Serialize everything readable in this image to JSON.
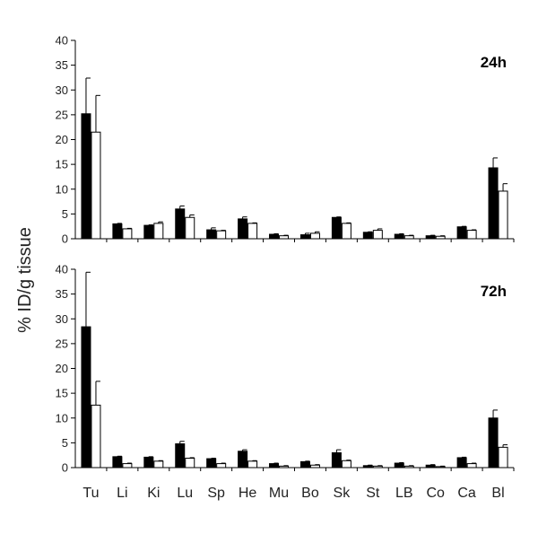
{
  "figure": {
    "ylabel": "% ID/g tissue"
  },
  "chart_data": [
    {
      "type": "bar",
      "annotation": "24h",
      "categories": [
        "Tu",
        "Li",
        "Ki",
        "Lu",
        "Sp",
        "He",
        "Mu",
        "Bo",
        "Sk",
        "St",
        "LB",
        "Co",
        "Ca",
        "Bl"
      ],
      "ylim": [
        0,
        40
      ],
      "yticks": [
        0,
        5,
        10,
        15,
        20,
        25,
        30,
        35,
        40
      ],
      "grid": false,
      "show_xticklabels": false,
      "series": [
        {
          "fill": "#000000",
          "values": [
            25.2,
            3.0,
            2.7,
            6.0,
            1.8,
            4.0,
            0.9,
            0.8,
            4.3,
            1.3,
            0.9,
            0.6,
            2.4,
            14.3
          ],
          "errors": [
            7.2,
            0.1,
            0.1,
            0.6,
            0.4,
            0.4,
            0.1,
            0.3,
            0.1,
            0.1,
            0.1,
            0.1,
            0.1,
            2.0
          ]
        },
        {
          "fill": "#ffffff",
          "values": [
            21.5,
            2.0,
            3.1,
            4.3,
            1.6,
            3.1,
            0.6,
            1.1,
            3.1,
            1.7,
            0.6,
            0.5,
            1.7,
            9.6
          ],
          "errors": [
            7.4,
            0.1,
            0.3,
            0.5,
            0.1,
            0.1,
            0.1,
            0.3,
            0.1,
            0.3,
            0.1,
            0.1,
            0.1,
            1.5
          ]
        }
      ]
    },
    {
      "type": "bar",
      "annotation": "72h",
      "categories": [
        "Tu",
        "Li",
        "Ki",
        "Lu",
        "Sp",
        "He",
        "Mu",
        "Bo",
        "Sk",
        "St",
        "LB",
        "Co",
        "Ca",
        "Bl"
      ],
      "ylim": [
        0,
        40
      ],
      "yticks": [
        0,
        5,
        10,
        15,
        20,
        25,
        30,
        35,
        40
      ],
      "grid": false,
      "show_xticklabels": true,
      "series": [
        {
          "fill": "#000000",
          "values": [
            28.4,
            2.2,
            2.1,
            4.8,
            1.8,
            3.3,
            0.8,
            1.2,
            3.0,
            0.4,
            0.9,
            0.5,
            2.0,
            10.0
          ],
          "errors": [
            11.0,
            0.1,
            0.1,
            0.5,
            0.1,
            0.3,
            0.1,
            0.1,
            0.6,
            0.1,
            0.1,
            0.1,
            0.1,
            1.6
          ]
        },
        {
          "fill": "#ffffff",
          "values": [
            12.6,
            0.8,
            1.3,
            1.9,
            0.8,
            1.3,
            0.3,
            0.5,
            1.4,
            0.3,
            0.3,
            0.2,
            0.8,
            4.1
          ],
          "errors": [
            4.8,
            0.1,
            0.1,
            0.1,
            0.1,
            0.1,
            0.1,
            0.1,
            0.1,
            0.1,
            0.1,
            0.1,
            0.1,
            0.5
          ]
        }
      ]
    }
  ]
}
